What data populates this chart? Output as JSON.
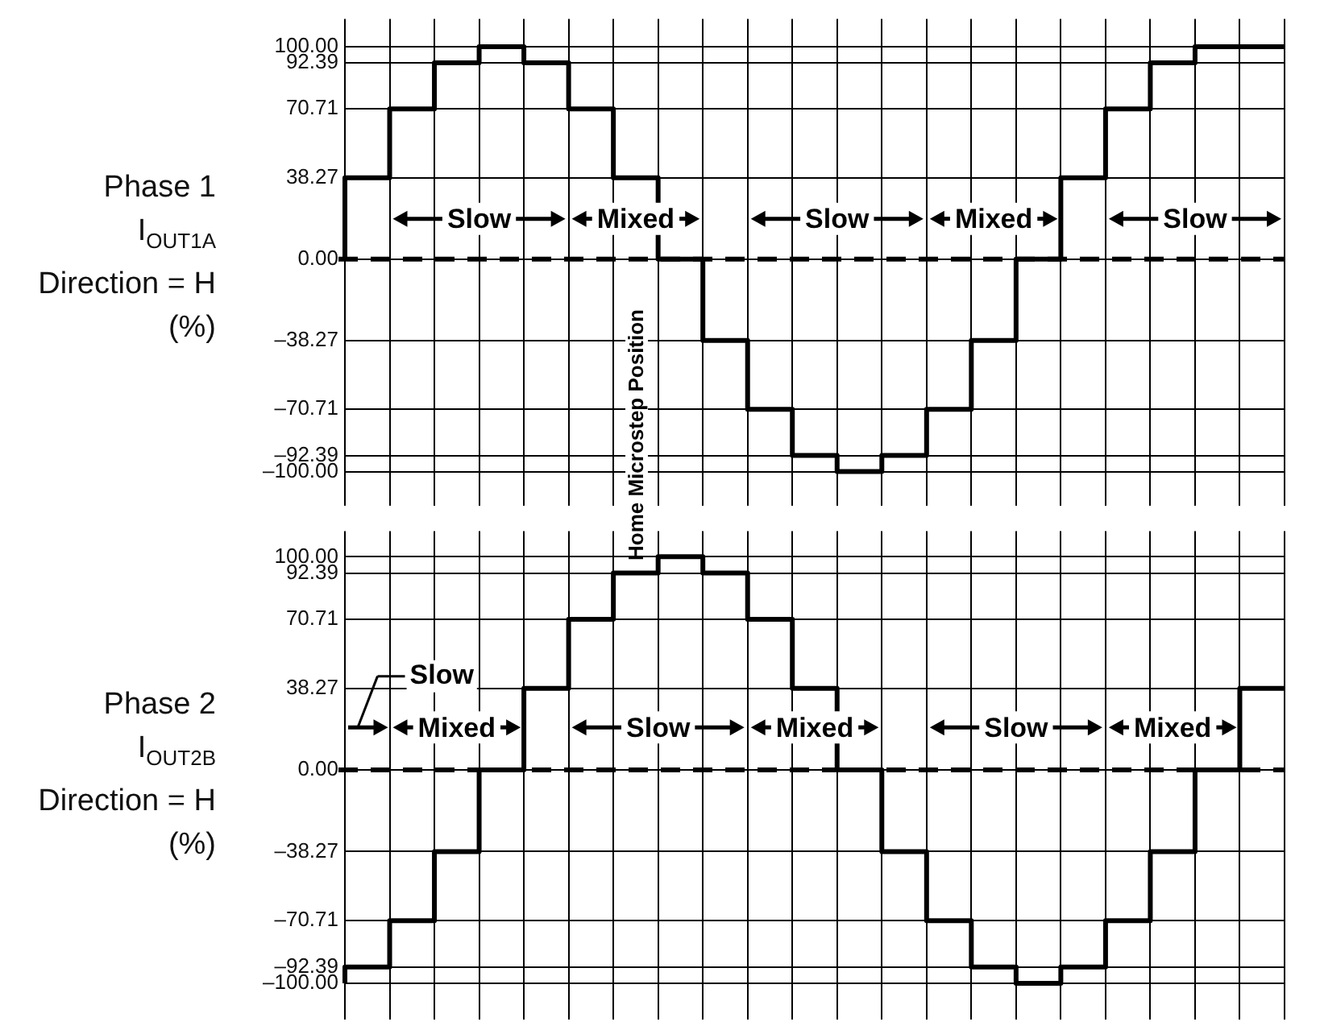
{
  "chart_data": [
    {
      "type": "step",
      "ylabel": "Phase 1\nI$_{OUT1A}$\nDirection = H\n(%)",
      "categories": [
        null,
        null,
        null,
        null,
        null,
        null,
        null,
        null,
        null,
        null,
        null,
        null,
        null,
        null,
        null,
        null,
        null,
        null,
        null,
        null,
        null,
        null
      ],
      "series": [
        {
          "color": "#000000",
          "values": [
            0,
            38.27,
            70.71,
            92.39,
            100,
            92.39,
            70.71,
            38.27,
            0,
            -38.27,
            -70.71,
            -92.39,
            -100,
            -92.39,
            -70.71,
            -38.27,
            0,
            38.27,
            70.71,
            92.39,
            100,
            100
          ]
        }
      ],
      "ylim": [
        -110,
        113
      ],
      "yticks": [
        {
          "value": 100,
          "label": "100.00"
        },
        {
          "value": 92.39,
          "label": "92.39"
        },
        {
          "value": 70.71,
          "label": "70.71"
        },
        {
          "value": 38.27,
          "label": "38.27"
        },
        {
          "value": 0,
          "label": "0.00"
        },
        {
          "value": -38.27,
          "label": "–38.27"
        },
        {
          "value": -70.71,
          "label": "–70.71"
        },
        {
          "value": -92.39,
          "label": "–92.39"
        },
        {
          "value": -100,
          "label": "–100.00"
        }
      ],
      "grid": true,
      "tick_labels": "y",
      "marker": "none",
      "ref_lines": [
        {
          "axis": "y",
          "value": 0,
          "color": "#000000",
          "line_style": "dashed"
        }
      ],
      "annotations": [
        "Slow",
        "Mixed",
        "Slow",
        "Mixed",
        "Slow",
        "Home Microstep Position"
      ]
    },
    {
      "type": "step",
      "ylabel": "Phase 2\nI$_{OUT2B}$\nDirection = H\n(%)",
      "categories": [
        null,
        null,
        null,
        null,
        null,
        null,
        null,
        null,
        null,
        null,
        null,
        null,
        null,
        null,
        null,
        null,
        null,
        null,
        null,
        null,
        null,
        null
      ],
      "series": [
        {
          "color": "#000000",
          "values": [
            -100,
            -92.39,
            -70.71,
            -38.27,
            0,
            38.27,
            70.71,
            92.39,
            100,
            92.39,
            70.71,
            38.27,
            0,
            -38.27,
            -70.71,
            -92.39,
            -100,
            -92.39,
            -70.71,
            -38.27,
            0,
            38.27
          ]
        }
      ],
      "ylim": [
        -111,
        112
      ],
      "yticks": [
        {
          "value": 100,
          "label": "100.00"
        },
        {
          "value": 92.39,
          "label": "92.39"
        },
        {
          "value": 70.71,
          "label": "70.71"
        },
        {
          "value": 38.27,
          "label": "38.27"
        },
        {
          "value": 0,
          "label": "0.00"
        },
        {
          "value": -38.27,
          "label": "–38.27"
        },
        {
          "value": -70.71,
          "label": "–70.71"
        },
        {
          "value": -92.39,
          "label": "–92.39"
        },
        {
          "value": -100,
          "label": "–100.00"
        }
      ],
      "grid": true,
      "tick_labels": "y",
      "marker": "none",
      "ref_lines": [
        {
          "axis": "y",
          "value": 0,
          "color": "#000000",
          "line_style": "dashed"
        }
      ],
      "annotations": [
        "Slow",
        "Mixed",
        "Slow",
        "Mixed",
        "Slow",
        "Mixed"
      ]
    }
  ]
}
